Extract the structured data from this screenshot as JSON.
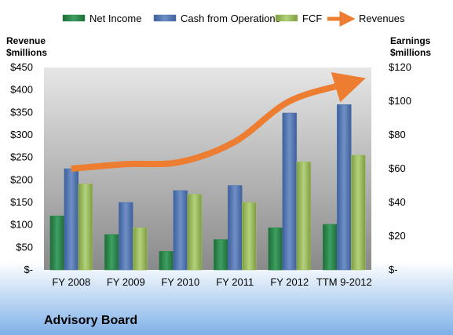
{
  "chart_data": {
    "type": "bar",
    "categories": [
      "FY 2008",
      "FY 2009",
      "FY 2010",
      "FY 2011",
      "FY 2012",
      "TTM 9-2012"
    ],
    "series": [
      {
        "name": "Net Income",
        "axis": "right",
        "color": "#2e8a4e",
        "values": [
          32,
          21,
          11,
          18,
          25,
          27
        ]
      },
      {
        "name": "Cash from Operations",
        "axis": "right",
        "color": "#5577b4",
        "values": [
          60,
          40,
          47,
          50,
          93,
          98
        ]
      },
      {
        "name": "FCF",
        "axis": "right",
        "color": "#9dbd5e",
        "values": [
          51,
          25,
          45,
          40,
          64,
          68
        ]
      }
    ],
    "line_series": {
      "name": "Revenues",
      "axis": "left",
      "color": "#ed7d31",
      "values": [
        225,
        235,
        240,
        285,
        375,
        415
      ]
    },
    "left_axis": {
      "title_line1": "Revenue",
      "title_line2": "$millions",
      "ylim": [
        0,
        450
      ],
      "ticks": [
        "$-",
        "$50",
        "$100",
        "$150",
        "$200",
        "$250",
        "$300",
        "$350",
        "$400",
        "$450"
      ]
    },
    "right_axis": {
      "title_line1": "Earnings",
      "title_line2": "$millions",
      "ylim": [
        0,
        120
      ],
      "ticks": [
        "$-",
        "$20",
        "$40",
        "$60",
        "$80",
        "$100",
        "$120"
      ]
    },
    "legend_position": "top",
    "grid": false
  },
  "branding": {
    "text": "Advisory Board"
  }
}
